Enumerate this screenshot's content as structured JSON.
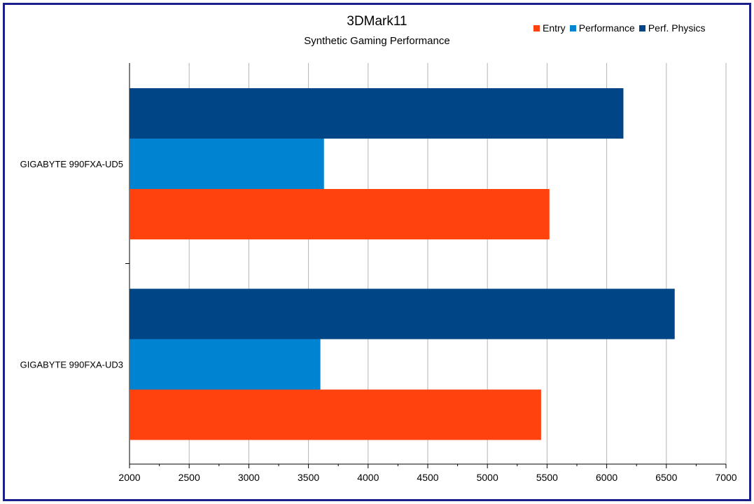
{
  "chart_data": {
    "type": "bar",
    "orientation": "horizontal",
    "title": "3DMark11",
    "subtitle": "Synthetic Gaming Performance",
    "categories": [
      "GIGABYTE 990FXA-UD5",
      "GIGABYTE 990FXA-UD3"
    ],
    "series": [
      {
        "name": "Perf. Physics",
        "color": "#004586",
        "values": [
          6140,
          6570
        ]
      },
      {
        "name": "Performance",
        "color": "#0084d1",
        "values": [
          3630,
          3600
        ]
      },
      {
        "name": "Entry",
        "color": "#ff420e",
        "values": [
          5520,
          5450
        ]
      }
    ],
    "legend_order": [
      "Entry",
      "Performance",
      "Perf. Physics"
    ],
    "xlim": [
      2000,
      7000
    ],
    "xticks": [
      "2000",
      "2500",
      "3000",
      "3500",
      "4000",
      "4500",
      "5000",
      "5500",
      "6000",
      "6500",
      "7000"
    ],
    "grid": true,
    "legend_position": "top-right"
  }
}
